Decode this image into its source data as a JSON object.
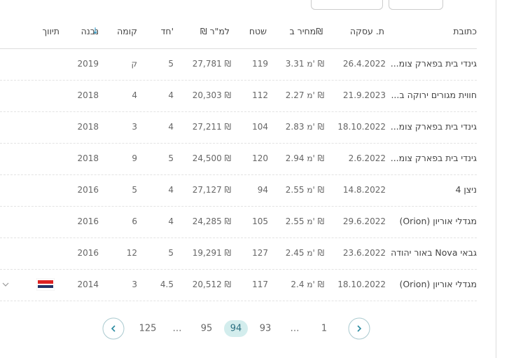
{
  "table": {
    "columns": [
      "כתובת",
      "ת. עסקה",
      "מחיר ב₪",
      "שטח",
      "₪ למ\"ר",
      "חד'",
      "קומה",
      "נבנה",
      "תיווך"
    ],
    "rows": [
      [
        "גינדי בית בפארק צומ...",
        "26.4.2022",
        "3.31 מ' ₪",
        "119",
        "27,781 ₪",
        "5",
        "ק",
        "2019"
      ],
      [
        "חווית מגורים ירוקה ב...",
        "21.9.2023",
        "2.27 מ' ₪",
        "112",
        "20,303 ₪",
        "4",
        "4",
        "2018"
      ],
      [
        "גינדי בית בפארק צומ...",
        "18.10.2022",
        "2.83 מ' ₪",
        "104",
        "27,211 ₪",
        "4",
        "3",
        "2018"
      ],
      [
        "גינדי בית בפארק צומ...",
        "2.6.2022",
        "2.94 מ' ₪",
        "120",
        "24,500 ₪",
        "5",
        "9",
        "2018"
      ],
      [
        "ניצן 4",
        "14.8.2022",
        "2.55 מ' ₪",
        "94",
        "27,127 ₪",
        "4",
        "5",
        "2016"
      ],
      [
        "מגדלי אוריון (Orion)",
        "29.6.2022",
        "2.55 מ' ₪",
        "105",
        "24,285 ₪",
        "4",
        "6",
        "2016"
      ],
      [
        "גבאי Nova באור יהודה",
        "23.6.2022",
        "2.45 מ' ₪",
        "127",
        "19,291 ₪",
        "5",
        "12",
        "2016"
      ],
      [
        "מגדלי אוריון (Orion)",
        "18.10.2022",
        "2.4 מ' ₪",
        "117",
        "20,512 ₪",
        "4.5",
        "3",
        "2014"
      ]
    ]
  },
  "pagination": {
    "pages": [
      "1",
      "…",
      "93",
      "94",
      "95",
      "…",
      "125"
    ],
    "current_index": 3
  }
}
